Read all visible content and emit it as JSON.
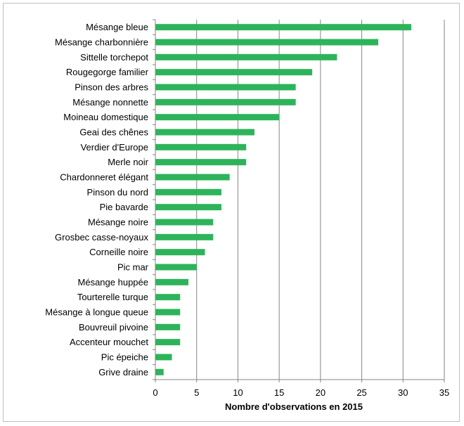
{
  "chart_data": {
    "type": "bar",
    "orientation": "horizontal",
    "categories": [
      "Mésange bleue",
      "Mésange charbonnière",
      "Sittelle torchepot",
      "Rougegorge familier",
      "Pinson des arbres",
      "Mésange nonnette",
      "Moineau domestique",
      "Geai des chênes",
      "Verdier d'Europe",
      "Merle noir",
      "Chardonneret élégant",
      "Pinson du nord",
      "Pie bavarde",
      "Mésange noire",
      "Grosbec casse-noyaux",
      "Corneille noire",
      "Pic mar",
      "Mésange huppée",
      "Tourterelle turque",
      "Mésange à longue queue",
      "Bouvreuil pivoine",
      "Accenteur mouchet",
      "Pic épeiche",
      "Grive draine"
    ],
    "values": [
      31,
      27,
      22,
      19,
      17,
      17,
      15,
      12,
      11,
      11,
      9,
      8,
      8,
      7,
      7,
      6,
      5,
      4,
      3,
      3,
      3,
      3,
      2,
      1
    ],
    "xlabel": "Nombre d'observations en 2015",
    "xlim": [
      0,
      35
    ],
    "xticks": [
      0,
      5,
      10,
      15,
      20,
      25,
      30,
      35
    ],
    "grid": "vertical",
    "bar_color": "#2db45a",
    "grid_color": "#868686"
  }
}
